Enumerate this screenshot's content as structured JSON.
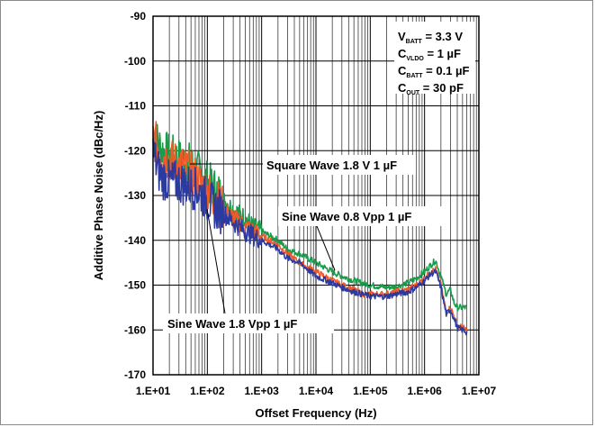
{
  "chart_data": {
    "type": "line",
    "xlabel": "Offset Frequency (Hz)",
    "ylabel": "Additive Phase Noise (dBc/Hz)",
    "xscale": "log",
    "xlim": [
      10,
      10000000
    ],
    "ylim": [
      -170,
      -90
    ],
    "x_tick_labels": [
      "1.E+01",
      "1.E+02",
      "1.E+03",
      "1.E+04",
      "1.E+05",
      "1.E+06",
      "1.E+07"
    ],
    "y_ticks": [
      -90,
      -100,
      -110,
      -120,
      -130,
      -140,
      -150,
      -160,
      -170
    ],
    "grid": true,
    "conditions": [
      {
        "main": "V",
        "sub": "BATT",
        "rest": " = 3.3 V"
      },
      {
        "main": "C",
        "sub": "VLDO",
        "rest": " = 1 µF"
      },
      {
        "main": "C",
        "sub": "BATT",
        "rest": " = 0.1 µF"
      },
      {
        "main": "C",
        "sub": "OUT",
        "rest": " = 30 pF"
      }
    ],
    "series": [
      {
        "name": "Sine Wave 0.8 Vpp 1 µF",
        "color": "#1a9a4a",
        "x": [
          10,
          12,
          15,
          20,
          30,
          50,
          70,
          100,
          150,
          200,
          300,
          500,
          700,
          1000,
          2000,
          3000,
          5000,
          10000,
          20000,
          30000,
          50000,
          70000,
          100000,
          200000,
          300000,
          500000,
          700000,
          1000000,
          1300000,
          1600000,
          2000000,
          2500000,
          3000000,
          3500000,
          4000000,
          5000000,
          6000000
        ],
        "y": [
          -116,
          -118,
          -120,
          -121,
          -122,
          -123,
          -125,
          -127,
          -129,
          -131,
          -133,
          -135,
          -137,
          -138,
          -140,
          -142,
          -143,
          -145,
          -147,
          -148,
          -149,
          -149.5,
          -150,
          -150.5,
          -150.3,
          -149.5,
          -148.5,
          -147,
          -145.5,
          -144.5,
          -148,
          -152,
          -151,
          -154,
          -155,
          -155,
          -155
        ]
      },
      {
        "name": "Square Wave 1.8 V 1 µF",
        "color": "#f05a28",
        "x": [
          10,
          12,
          15,
          20,
          30,
          50,
          70,
          100,
          150,
          200,
          300,
          500,
          700,
          1000,
          2000,
          3000,
          5000,
          10000,
          20000,
          30000,
          50000,
          70000,
          100000,
          200000,
          300000,
          500000,
          700000,
          1000000,
          1300000,
          1600000,
          2000000,
          2500000,
          3000000,
          3500000,
          4000000,
          5000000,
          6000000
        ],
        "y": [
          -117,
          -119,
          -121,
          -122,
          -123,
          -125,
          -127,
          -129,
          -131,
          -133,
          -135,
          -137,
          -138,
          -139,
          -141,
          -143,
          -145,
          -147,
          -149,
          -150,
          -151,
          -152,
          -152,
          -152,
          -151.5,
          -151,
          -150,
          -148.5,
          -147,
          -146.5,
          -150,
          -156,
          -155,
          -157,
          -159,
          -159.5,
          -160
        ]
      },
      {
        "name": "Sine Wave 1.8 Vpp 1 µF",
        "color": "#2b3aa0",
        "x": [
          10,
          12,
          15,
          20,
          30,
          50,
          70,
          100,
          150,
          200,
          300,
          500,
          700,
          1000,
          2000,
          3000,
          5000,
          10000,
          20000,
          30000,
          50000,
          70000,
          100000,
          200000,
          300000,
          500000,
          700000,
          1000000,
          1300000,
          1600000,
          2000000,
          2500000,
          3000000,
          3500000,
          4000000,
          5000000,
          6000000
        ],
        "y": [
          -120,
          -124,
          -126,
          -127,
          -127,
          -128,
          -129,
          -131,
          -133,
          -134,
          -136,
          -138,
          -139,
          -140,
          -142,
          -144,
          -145,
          -148,
          -149.5,
          -150.5,
          -151.5,
          -152,
          -152.5,
          -152.5,
          -152,
          -151.5,
          -150.5,
          -149,
          -147.5,
          -147,
          -150.5,
          -156.5,
          -155.5,
          -157.5,
          -159.5,
          -160,
          -160.5
        ]
      }
    ],
    "annotations": [
      {
        "text": "Square Wave 1.8 V 1 µF",
        "series": 1
      },
      {
        "text": "Sine Wave 0.8 Vpp 1 µF",
        "series": 0
      },
      {
        "text": "Sine Wave 1.8 Vpp 1 µF",
        "series": 2
      }
    ]
  }
}
